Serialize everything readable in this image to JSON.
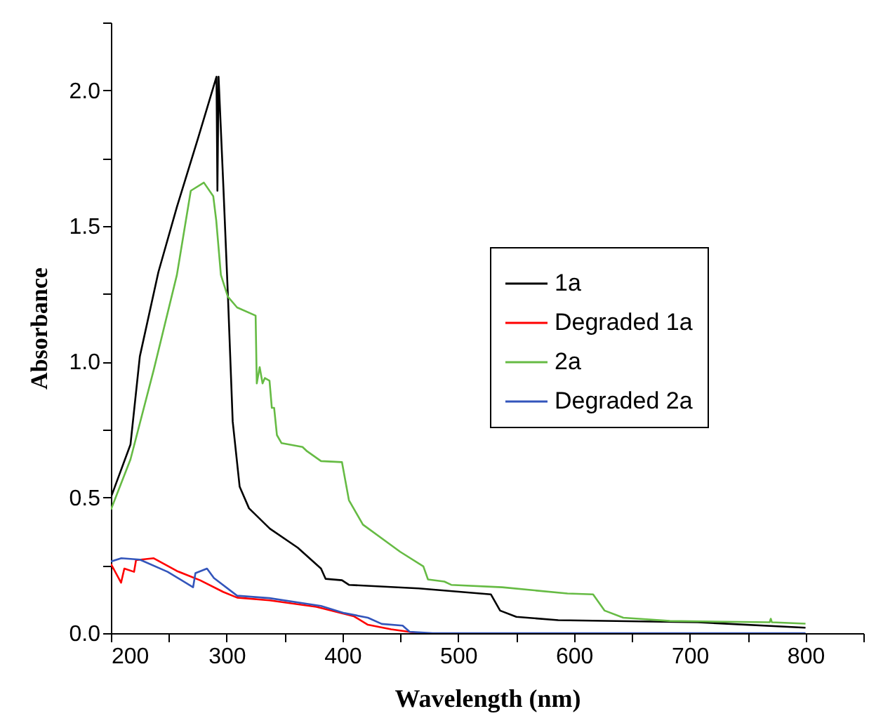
{
  "chart_data": {
    "type": "line",
    "xlabel": "Wavelength (nm)",
    "ylabel": "Absorbance",
    "xlim": [
      200,
      850
    ],
    "ylim": [
      0,
      2.25
    ],
    "xticks": [
      200,
      {
        "value": 250,
        "label": null
      },
      300,
      {
        "value": 350,
        "label": null
      },
      400,
      {
        "value": 450,
        "label": null
      },
      500,
      {
        "value": 550,
        "label": null
      },
      600,
      {
        "value": 650,
        "label": null
      },
      700,
      {
        "value": 750,
        "label": null
      },
      800,
      {
        "value": 850,
        "label": null
      }
    ],
    "yticks": [
      {
        "value": 0,
        "label": "0.0"
      },
      {
        "value": 0.25,
        "label": null
      },
      {
        "value": 0.5,
        "label": "0.5"
      },
      {
        "value": 0.75,
        "label": null
      },
      {
        "value": 1,
        "label": "1.0"
      },
      {
        "value": 1.25,
        "label": null
      },
      {
        "value": 1.5,
        "label": "1.5"
      },
      {
        "value": 1.75,
        "label": null
      },
      {
        "value": 2,
        "label": "2.0"
      },
      {
        "value": 2.25,
        "label": null
      }
    ],
    "grid": false,
    "legend": "right",
    "line_style": "solid",
    "marker": "none",
    "series": [
      {
        "name": "1a",
        "color": "#000000",
        "x": [
          200,
          216.9,
          225,
          241,
          257,
          275,
          291.2,
          292,
          293,
          297.2,
          301.2,
          305.2,
          311.2,
          319.3,
          337.3,
          361.4,
          381.5,
          385.5,
          399.6,
          405.6,
          465.9,
          528.2,
          536.2,
          550.2,
          586.4,
          706.9,
          800
        ],
        "values": [
          0.5,
          0.695,
          1.02,
          1.33,
          1.57,
          1.82,
          2.05,
          1.63,
          2.05,
          1.64,
          1.23,
          0.78,
          0.54,
          0.46,
          0.385,
          0.315,
          0.238,
          0.2,
          0.195,
          0.178,
          0.165,
          0.143,
          0.083,
          0.06,
          0.048,
          0.04,
          0.02
        ]
      },
      {
        "name": "Degraded 1a",
        "color": "#ff0000",
        "x": [
          200,
          208.8,
          211.6,
          220,
          221.7,
          237,
          257,
          277,
          297,
          309,
          337,
          377.5,
          410,
          422,
          442,
          466
        ],
        "values": [
          0.255,
          0.186,
          0.238,
          0.226,
          0.269,
          0.276,
          0.229,
          0.195,
          0.152,
          0.131,
          0.121,
          0.097,
          0.062,
          0.031,
          0.014,
          0
        ]
      },
      {
        "name": "2a",
        "color": "#66bb44",
        "x": [
          200,
          216.9,
          237,
          257,
          269,
          280.3,
          288.4,
          291,
          295,
          301,
          309,
          325,
          326,
          328.5,
          331,
          333,
          337,
          339,
          341,
          343.4,
          347.4,
          365.5,
          369.5,
          381.5,
          399.6,
          405.6,
          417.7,
          449.8,
          469.9,
          473.9,
          488,
          494,
          538,
          594.4,
          616.5,
          626.5,
          642.6,
          682.8,
          769,
          770,
          771,
          800
        ],
        "values": [
          0.455,
          0.64,
          0.97,
          1.32,
          1.63,
          1.66,
          1.61,
          1.52,
          1.32,
          1.24,
          1.2,
          1.17,
          0.92,
          0.98,
          0.92,
          0.94,
          0.93,
          0.83,
          0.83,
          0.73,
          0.7,
          0.686,
          0.67,
          0.634,
          0.63,
          0.49,
          0.4,
          0.3,
          0.246,
          0.198,
          0.19,
          0.178,
          0.169,
          0.146,
          0.143,
          0.083,
          0.057,
          0.045,
          0.04,
          0.053,
          0.04,
          0.035
        ]
      },
      {
        "name": "Degraded 2a",
        "color": "#3355bb",
        "x": [
          200,
          209,
          225,
          249,
          271,
          273,
          283,
          289,
          309,
          337,
          381.5,
          401.6,
          422,
          434,
          452,
          458,
          478,
          800
        ],
        "values": [
          0.264,
          0.276,
          0.271,
          0.226,
          0.169,
          0.221,
          0.238,
          0.203,
          0.138,
          0.129,
          0.1,
          0.074,
          0.057,
          0.034,
          0.028,
          0.005,
          0,
          0
        ]
      }
    ]
  }
}
